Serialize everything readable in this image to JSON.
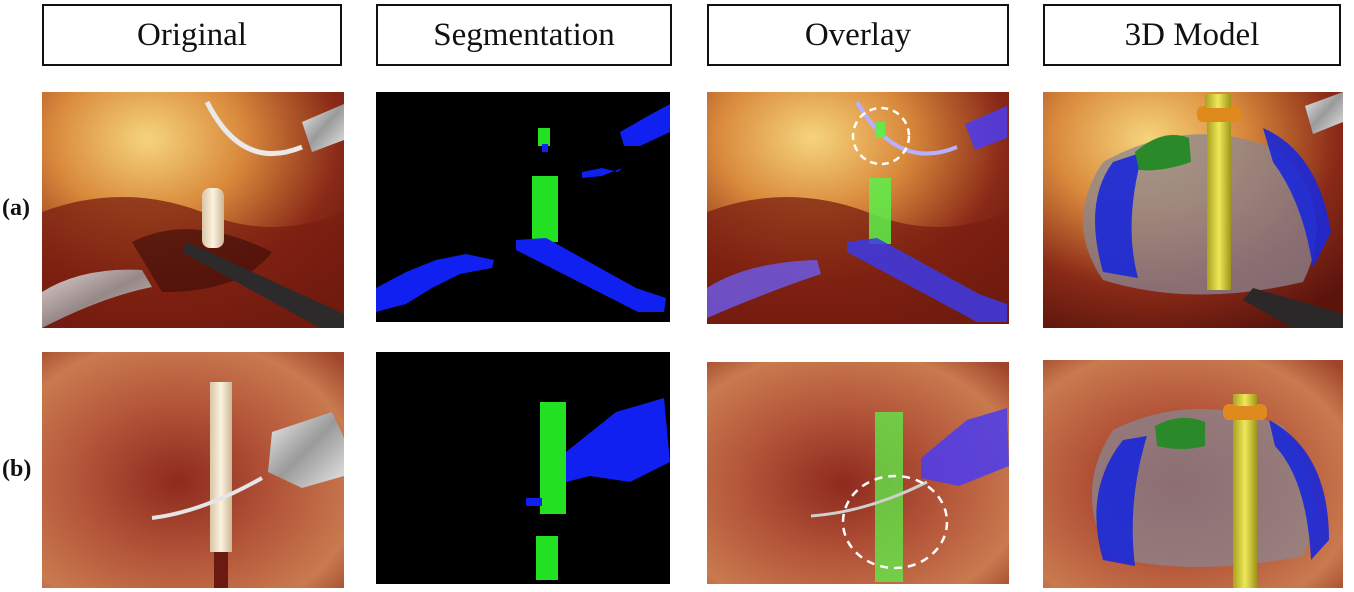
{
  "columns": [
    "Original",
    "Segmentation",
    "Overlay",
    "3D Model"
  ],
  "rows": [
    "(a)",
    "(b)"
  ]
}
